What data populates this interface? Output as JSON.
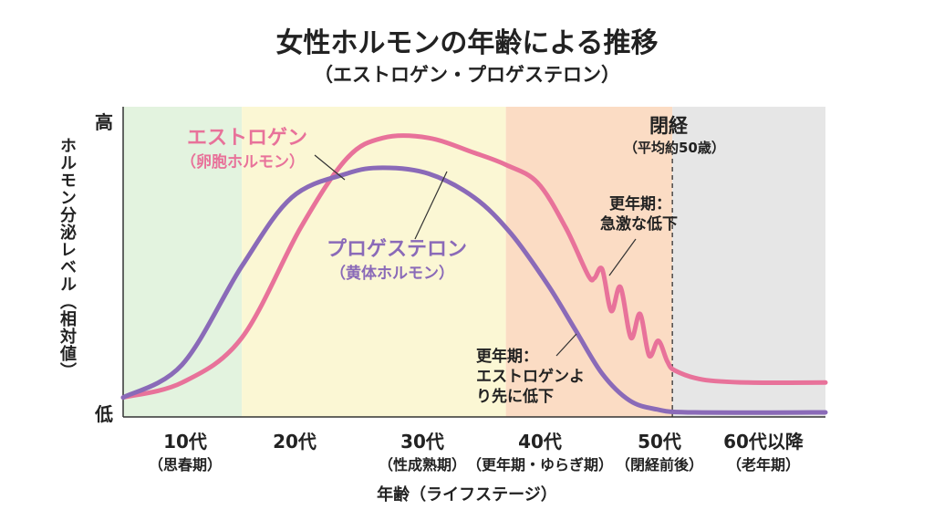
{
  "chart_data": {
    "type": "line",
    "title": "女性ホルモンの年齢による推移",
    "subtitle": "（エストロゲン・プロゲステロン）",
    "xlabel": "年齢（ライフステージ）",
    "ylabel": "ホルモン分泌レベル（相対値）",
    "y_ticks": {
      "high": "高",
      "low": "低"
    },
    "xlim": [
      0,
      100
    ],
    "ylim": [
      0,
      100
    ],
    "grid": false,
    "stages": [
      {
        "label": "10代",
        "sub": "（思春期）",
        "range": [
          0,
          16.9
        ],
        "color": "#e3f3df"
      },
      {
        "label": "20代",
        "sub": "",
        "range": [
          16.9,
          54.5
        ],
        "color": "#fbf7d4"
      },
      {
        "label": "30代",
        "sub": "（性成熟期）",
        "range": [
          16.9,
          54.5
        ],
        "color": "#fbf7d4"
      },
      {
        "label": "40代",
        "sub": "（更年期・ゆらぎ期）",
        "range": [
          54.5,
          78.2
        ],
        "color": "#fbdcc4"
      },
      {
        "label": "50代",
        "sub": "（閉経前後）",
        "range": [
          54.5,
          78.2
        ],
        "color": "#fbdcc4"
      },
      {
        "label": "60代以降",
        "sub": "（老年期）",
        "range": [
          78.2,
          100
        ],
        "color": "#e6e6e6"
      }
    ],
    "series": [
      {
        "name": "エストロゲン",
        "sub": "（卵胞ホルモン）",
        "color": "#e8729a",
        "x": [
          0,
          8.4,
          16.9,
          25.3,
          31.8,
          37,
          43.5,
          50,
          54.5,
          59,
          63,
          66.2,
          67.1,
          68.2,
          69.5,
          70.8,
          72.3,
          73.6,
          74.9,
          76.2,
          77.5,
          78.6,
          82.5,
          89,
          100
        ],
        "y": [
          5,
          10,
          25,
          62,
          85,
          92,
          92,
          87,
          83,
          77,
          62,
          46,
          45,
          48,
          34,
          42,
          25,
          33,
          19,
          24,
          17,
          14,
          11,
          10,
          10
        ]
      },
      {
        "name": "プロゲステロン",
        "sub": "（黄体ホルモン）",
        "color": "#8a6ab8",
        "x": [
          0,
          8.4,
          16.9,
          24,
          31.8,
          37,
          43.5,
          50,
          55.2,
          60.4,
          64.3,
          68.2,
          72.1,
          76,
          81,
          100
        ],
        "y": [
          5,
          16,
          49,
          72,
          80,
          82,
          80,
          72,
          60,
          43,
          28,
          13,
          4,
          1,
          0,
          0
        ]
      }
    ],
    "annotations": {
      "menopause": {
        "label": "閉経",
        "sub": "（平均約50歳）",
        "x": 78.2
      },
      "estrogen_drop": [
        "更年期：",
        "急激な低下"
      ],
      "progesterone_drop": [
        "更年期：",
        "エストロゲンよ",
        "り先に低下"
      ]
    }
  }
}
